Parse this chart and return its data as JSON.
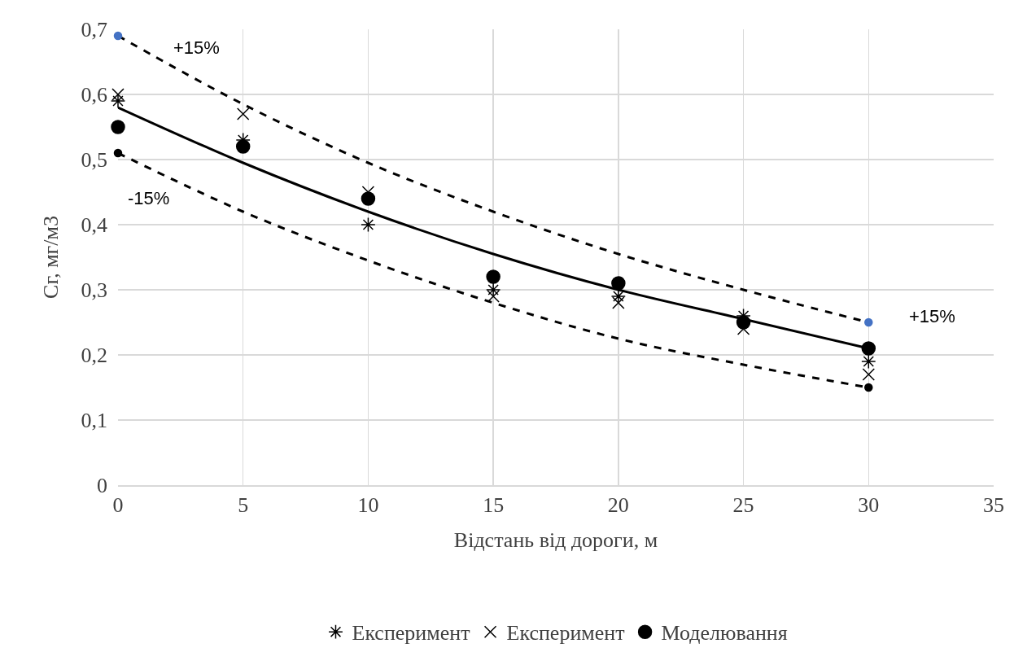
{
  "chart_data": {
    "type": "scatter",
    "xlabel": "Відстань від дороги, м",
    "ylabel": "Сг, мг/м3",
    "x": [
      0,
      5,
      10,
      15,
      20,
      25,
      30
    ],
    "series": [
      {
        "name": "Експеримент",
        "color": "#000000",
        "values": [
          0.59,
          0.53,
          0.4,
          0.3,
          0.29,
          0.26,
          0.19
        ]
      },
      {
        "name": "Експеримент",
        "color": "#000000",
        "marker": "cross",
        "values": [
          0.6,
          0.57,
          0.45,
          0.29,
          0.28,
          0.24,
          0.17
        ]
      },
      {
        "name": "Моделювання",
        "color": "#000000",
        "marker": "circle",
        "values": [
          0.55,
          0.52,
          0.44,
          0.32,
          0.31,
          0.25,
          0.21
        ]
      },
      {
        "type": "line",
        "color": "#000000",
        "marker": "none",
        "line_style": "solid",
        "values": [
          0.58,
          0.495,
          0.42,
          0.355,
          0.3,
          0.255,
          0.21
        ]
      },
      {
        "type": "line",
        "color": "#000000",
        "marker": "none",
        "line_style": "dashed",
        "values": [
          0.69,
          0.585,
          0.495,
          0.42,
          0.355,
          0.3,
          0.25
        ]
      },
      {
        "type": "line",
        "color": "#000000",
        "marker": "none",
        "line_style": "dashed",
        "values": [
          0.51,
          0.42,
          0.345,
          0.28,
          0.225,
          0.185,
          0.15
        ]
      },
      {
        "color": "#4472c4",
        "marker": "circle",
        "values": [
          0.69,
          null,
          null,
          null,
          null,
          null,
          0.25
        ]
      },
      {
        "color": "#000000",
        "marker": "circle",
        "values": [
          0.51,
          null,
          null,
          null,
          null,
          null,
          0.15
        ]
      }
    ],
    "xlim": [
      0,
      35
    ],
    "xticks": [
      0,
      5,
      10,
      15,
      20,
      25,
      30,
      35
    ],
    "ylim": [
      0,
      0.7
    ],
    "yticks": [
      {
        "value": 0,
        "label": "0"
      },
      {
        "value": 0.1,
        "label": "0,1"
      },
      {
        "value": 0.2,
        "label": "0,2"
      },
      {
        "value": 0.3,
        "label": "0,3"
      },
      {
        "value": 0.4,
        "label": "0,4"
      },
      {
        "value": 0.5,
        "label": "0,5"
      },
      {
        "value": 0.6,
        "label": "0,6"
      },
      {
        "value": 0.7,
        "label": "0,7"
      }
    ],
    "grid": true,
    "legend": "bottom",
    "annotations": [
      "+15%",
      "-15%",
      "+15%"
    ]
  }
}
